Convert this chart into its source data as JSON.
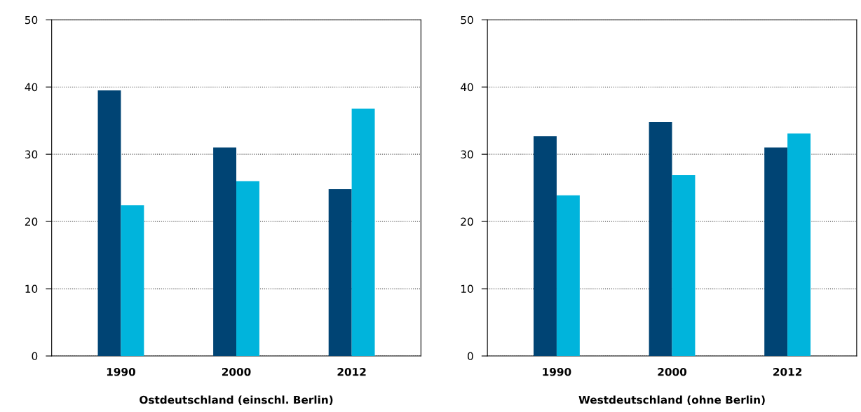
{
  "chart_data": [
    {
      "type": "bar",
      "xlabel": "Ostdeutschland (einschl. Berlin)",
      "categories": [
        "1990",
        "2000",
        "2012"
      ],
      "series": [
        {
          "color": "#004474",
          "values": [
            39.5,
            31.0,
            24.8
          ]
        },
        {
          "color": "#00b4dc",
          "values": [
            22.4,
            26.0,
            36.8
          ]
        }
      ],
      "ylim": [
        0,
        50
      ],
      "yticks": [
        0,
        10,
        20,
        30,
        40,
        50
      ],
      "grid": "y",
      "legend": false
    },
    {
      "type": "bar",
      "xlabel": "Westdeutschland (ohne Berlin)",
      "categories": [
        "1990",
        "2000",
        "2012"
      ],
      "series": [
        {
          "color": "#004474",
          "values": [
            32.7,
            34.8,
            31.0
          ]
        },
        {
          "color": "#00b4dc",
          "values": [
            23.9,
            26.9,
            33.1
          ]
        }
      ],
      "ylim": [
        0,
        50
      ],
      "yticks": [
        0,
        10,
        20,
        30,
        40,
        50
      ],
      "grid": "y",
      "legend": false
    }
  ]
}
